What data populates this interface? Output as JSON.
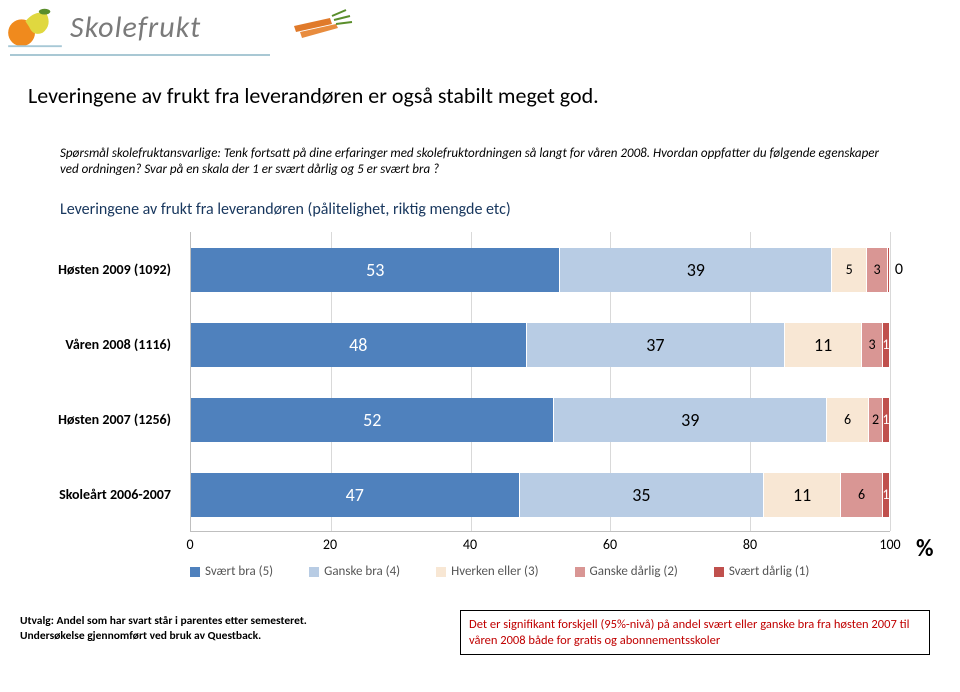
{
  "logo": {
    "text": "Skolefrukt",
    "text_color": "#7a7a7a"
  },
  "title": "Leveringene av frukt fra leverandøren er også stabilt  meget god.",
  "question": "Spørsmål skolefruktansvarlige:  Tenk fortsatt på dine erfaringer med skolefruktordningen så langt for våren 2008. Hvordan oppfatter du følgende egenskaper ved ordningen?  Svar på en skala der 1 er svært dårlig og 5 er svært bra ?",
  "subheading": "Leveringene av frukt fra leverandøren (pålitelighet, riktig mengde etc)",
  "chart": {
    "type": "stacked-horizontal-bar",
    "x_min": 0,
    "x_max": 100,
    "x_tick_step": 20,
    "grid_color": "#d9d9d9",
    "axis_color": "#bfbfbf",
    "label_fontsize": 14,
    "value_fontsize": 18,
    "categories": [
      {
        "label": "Høsten 2009 (1092)",
        "values": [
          53,
          39,
          5,
          3,
          0
        ],
        "display": [
          "53",
          "39",
          "5",
          "3",
          "0"
        ]
      },
      {
        "label": "Våren 2008 (1116)",
        "values": [
          48,
          37,
          11,
          3,
          1
        ],
        "display": [
          "48",
          "37",
          "11",
          "3",
          "1"
        ]
      },
      {
        "label": "Høsten 2007 (1256)",
        "values": [
          52,
          39,
          6,
          2,
          1
        ],
        "display": [
          "52",
          "39",
          "6",
          "2",
          "1"
        ]
      },
      {
        "label": "Skoleårt 2006-2007",
        "values": [
          47,
          35,
          11,
          6,
          1
        ],
        "display": [
          "47",
          "35",
          "11",
          "6",
          "1"
        ]
      }
    ],
    "series": [
      {
        "name": "Svært bra (5)",
        "color": "#4f81bd"
      },
      {
        "name": "Ganske bra (4)",
        "color": "#b8cce4"
      },
      {
        "name": "Hverken eller (3)",
        "color": "#f8e7d4"
      },
      {
        "name": "Ganske dårlig (2)",
        "color": "#d99694"
      },
      {
        "name": "Svært dårlig (1)",
        "color": "#c0504d"
      }
    ],
    "percent_symbol": "%"
  },
  "xticks": [
    {
      "pos_pct": 0,
      "label": "0"
    },
    {
      "pos_pct": 20,
      "label": "20"
    },
    {
      "pos_pct": 40,
      "label": "40"
    },
    {
      "pos_pct": 60,
      "label": "60"
    },
    {
      "pos_pct": 80,
      "label": "80"
    },
    {
      "pos_pct": 100,
      "label": "100"
    }
  ],
  "footnote_left": "Utvalg:  Andel som har svart står i parentes etter semesteret.\nUndersøkelse gjennomført ved bruk av Questback.",
  "footnote_right": "Det er signifikant forskjell (95%-nivå) på andel svært eller ganske bra fra høsten 2007 til våren 2008 både for gratis og abonnementsskoler"
}
